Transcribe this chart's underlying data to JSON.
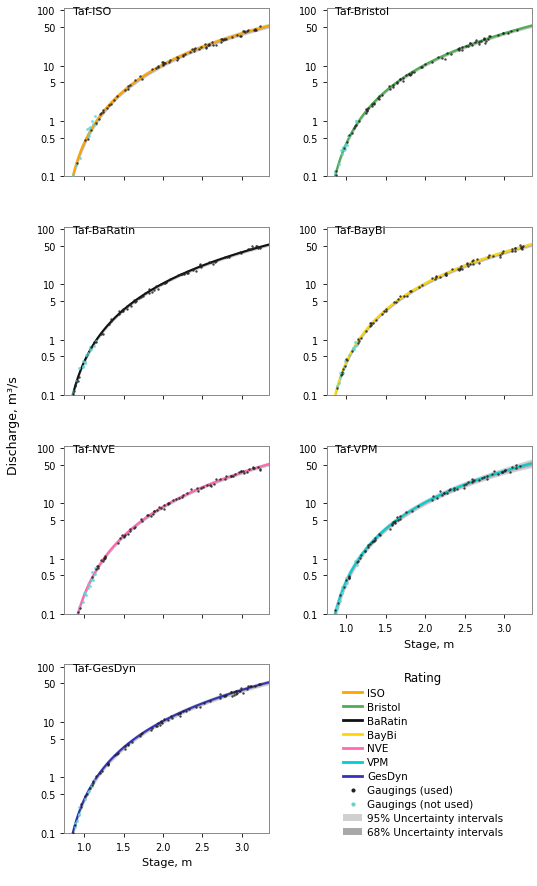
{
  "panels": [
    {
      "title": "Taf-ISO",
      "color": "#FFA500",
      "row": 0,
      "col": 0
    },
    {
      "title": "Taf-Bristol",
      "color": "#4CAF50",
      "row": 0,
      "col": 1
    },
    {
      "title": "Taf-BaRatin",
      "color": "#111111",
      "row": 1,
      "col": 0
    },
    {
      "title": "Taf-BayBi",
      "color": "#FFD700",
      "row": 1,
      "col": 1
    },
    {
      "title": "Taf-NVE",
      "color": "#FF69B4",
      "row": 2,
      "col": 0
    },
    {
      "title": "Taf-VPM",
      "color": "#00CED1",
      "row": 2,
      "col": 1
    },
    {
      "title": "Taf-GesDyn",
      "color": "#3333BB",
      "row": 3,
      "col": 0
    }
  ],
  "x_min": 0.75,
  "x_max": 3.35,
  "y_min": 0.1,
  "y_max": 110,
  "x_ticks": [
    1.0,
    1.5,
    2.0,
    2.5,
    3.0
  ],
  "y_ticks": [
    0.1,
    0.5,
    1,
    5,
    10,
    50,
    100
  ],
  "y_tick_labels": [
    "0.1",
    "0.5",
    "1",
    "5",
    "10",
    "50",
    "100"
  ],
  "rating_colors": {
    "ISO": "#FFA500",
    "Bristol": "#4CAF50",
    "BaRatin": "#111111",
    "BayBi": "#FFD700",
    "NVE": "#FF69B4",
    "VPM": "#00CED1",
    "GesDyn": "#3333BB"
  },
  "band_95_color": "#D0D0D0",
  "band_68_color": "#A8A8A8",
  "dot_used_color": "#222222",
  "dot_notused_color": "#5DD5D5",
  "figsize": [
    5.37,
    8.87
  ],
  "dpi": 100
}
